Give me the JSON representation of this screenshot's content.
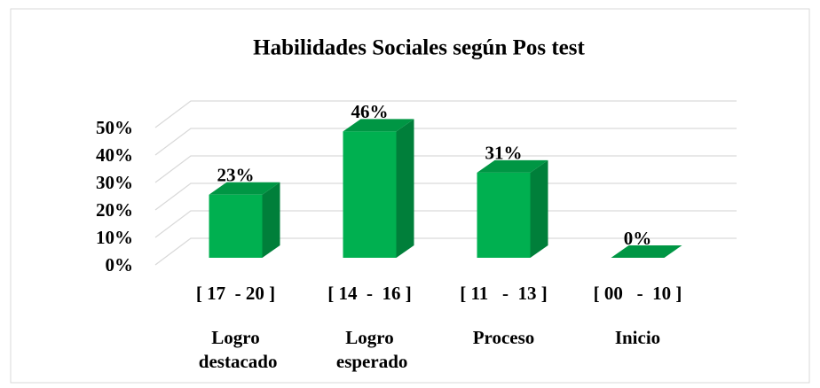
{
  "chart_data": {
    "type": "bar3d",
    "title": "Habilidades Sociales según Pos test",
    "categories": [
      "[ 17  - 20 ]",
      "[ 14  -  16 ]",
      "[ 11   -  13 ]",
      "[ 00   -  10 ]"
    ],
    "category_labels": [
      "Logro destacado",
      "Logro esperado",
      "Proceso",
      "Inicio"
    ],
    "values": [
      23,
      46,
      31,
      0
    ],
    "value_labels": [
      "23%",
      "46%",
      "31%",
      "0%"
    ],
    "color": "#00b050",
    "ylim": [
      0,
      50
    ],
    "yticks": [
      {
        "value": 0,
        "label": "0%"
      },
      {
        "value": 10,
        "label": "10%"
      },
      {
        "value": 20,
        "label": "20%"
      },
      {
        "value": 30,
        "label": "30%"
      },
      {
        "value": 40,
        "label": "40%"
      },
      {
        "value": 50,
        "label": "50%"
      }
    ],
    "grid": true
  }
}
